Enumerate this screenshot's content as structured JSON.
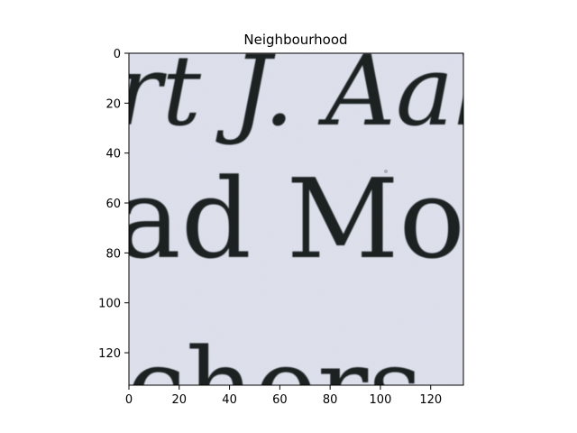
{
  "figure": {
    "title": "Neighbourhood"
  },
  "image": {
    "description_tokens": [
      "rt J. Aall",
      "ad Moo",
      "chers a"
    ],
    "paper_color": "#dfe2ec",
    "ink_color": "#1c2420"
  },
  "axes": {
    "xlim": [
      0,
      133
    ],
    "ylim": [
      133,
      0
    ],
    "x_ticks": [
      0,
      20,
      40,
      60,
      80,
      100,
      120
    ],
    "y_ticks": [
      0,
      20,
      40,
      60,
      80,
      100,
      120
    ],
    "x_tick_labels": [
      "0",
      "20",
      "40",
      "60",
      "80",
      "100",
      "120"
    ],
    "y_tick_labels": [
      "0",
      "20",
      "40",
      "60",
      "80",
      "100",
      "120"
    ]
  }
}
